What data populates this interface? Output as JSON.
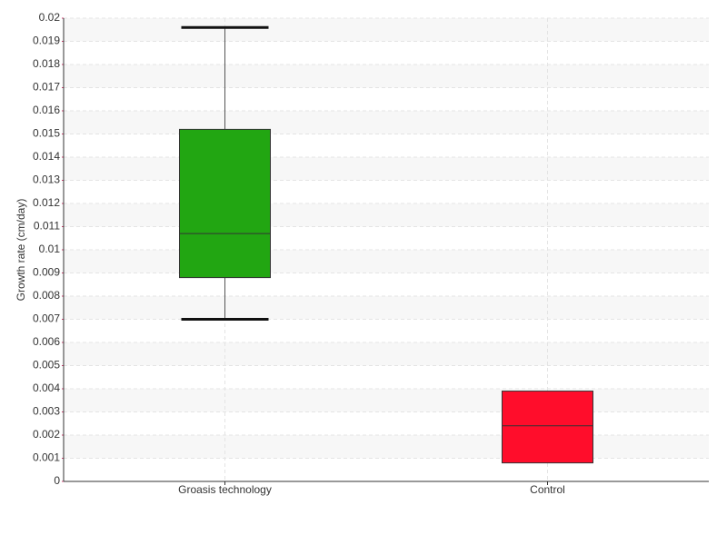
{
  "chart_data": {
    "type": "box",
    "y_label": "Growth rate (cm/day)",
    "categories": [
      "Groasis technology",
      "Control"
    ],
    "colors": [
      "#22a612",
      "#ff0d2b"
    ],
    "min": [
      0.007,
      null
    ],
    "q1": [
      0.0088,
      0.0008
    ],
    "median": [
      0.0107,
      0.0024
    ],
    "q3": [
      0.0152,
      0.0039
    ],
    "max": [
      0.0196,
      null
    ],
    "ylim": [
      0,
      0.02
    ],
    "yticks": [
      0,
      0.001,
      0.002,
      0.003,
      0.004,
      0.005,
      0.006,
      0.007,
      0.008,
      0.009,
      0.01,
      0.011,
      0.012,
      0.013,
      0.014,
      0.015,
      0.016,
      0.017,
      0.018,
      0.019,
      0.02
    ],
    "grid": true
  }
}
